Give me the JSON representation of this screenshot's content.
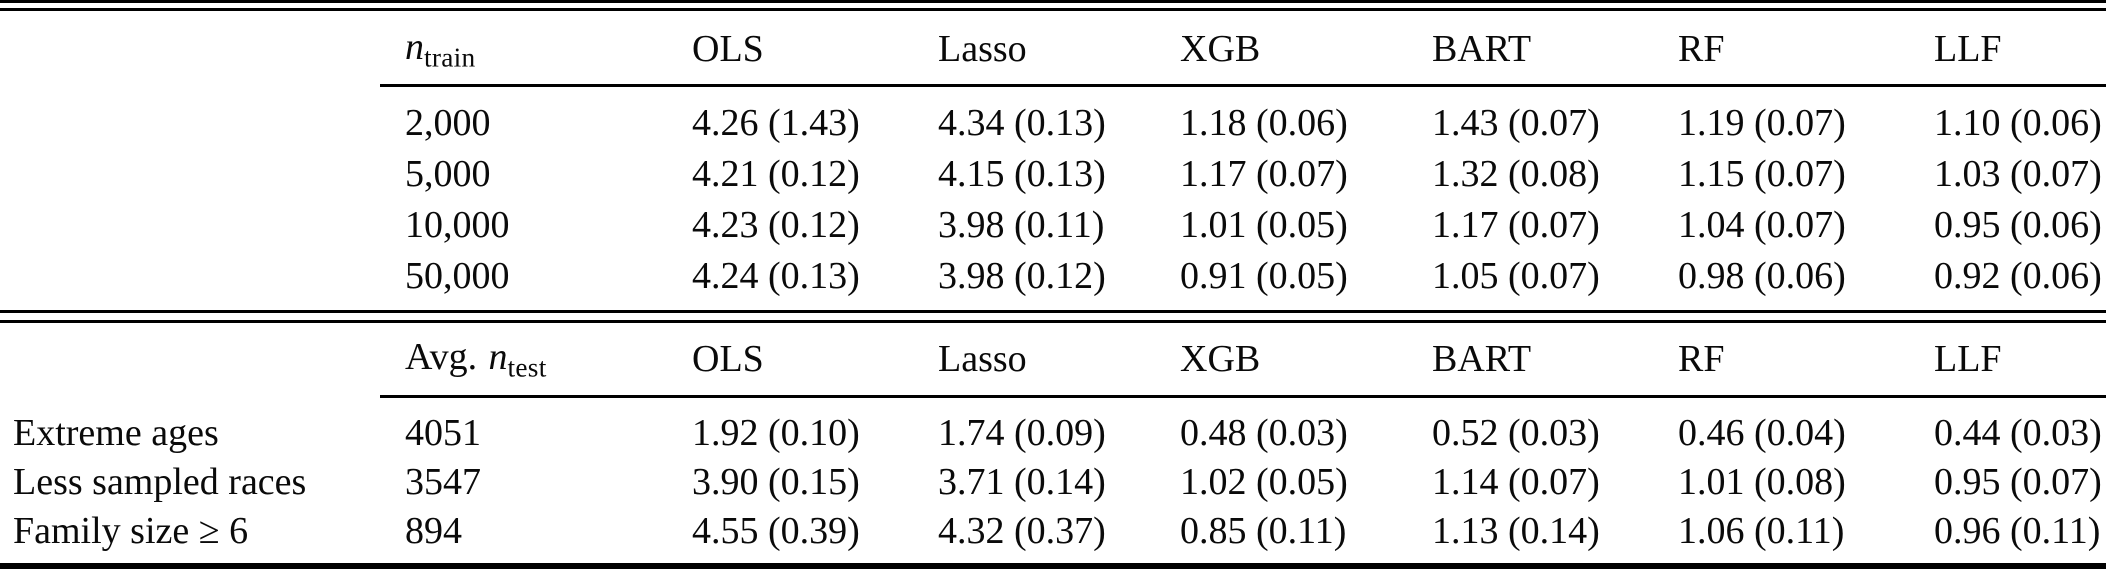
{
  "table": {
    "colors": {
      "background": "#ffffff",
      "text": "#0a0a0a",
      "rule": "#000000"
    },
    "methods": [
      "OLS",
      "Lasso",
      "XGB",
      "BART",
      "RF",
      "LLF"
    ],
    "section_train": {
      "col1_header": {
        "main": "n",
        "sub": "train"
      },
      "rows": [
        {
          "n": "2,000",
          "values": [
            "4.26 (1.43)",
            "4.34 (0.13)",
            "1.18 (0.06)",
            "1.43 (0.07)",
            "1.19 (0.07)",
            "1.10 (0.06)"
          ]
        },
        {
          "n": "5,000",
          "values": [
            "4.21 (0.12)",
            "4.15 (0.13)",
            "1.17 (0.07)",
            "1.32 (0.08)",
            "1.15 (0.07)",
            "1.03 (0.07)"
          ]
        },
        {
          "n": "10,000",
          "values": [
            "4.23 (0.12)",
            "3.98 (0.11)",
            "1.01 (0.05)",
            "1.17 (0.07)",
            "1.04 (0.07)",
            "0.95 (0.06)"
          ]
        },
        {
          "n": "50,000",
          "values": [
            "4.24 (0.13)",
            "3.98 (0.12)",
            "0.91 (0.05)",
            "1.05 (0.07)",
            "0.98 (0.06)",
            "0.92 (0.06)"
          ]
        }
      ]
    },
    "section_test": {
      "col1_header": {
        "prefix": "Avg.",
        "main": "n",
        "sub": "test"
      },
      "rows": [
        {
          "label": "Extreme ages",
          "n": "4051",
          "values": [
            "1.92 (0.10)",
            "1.74 (0.09)",
            "0.48 (0.03)",
            "0.52 (0.03)",
            "0.46 (0.04)",
            "0.44 (0.03)"
          ]
        },
        {
          "label": "Less sampled races",
          "n": "3547",
          "values": [
            "3.90 (0.15)",
            "3.71 (0.14)",
            "1.02 (0.05)",
            "1.14 (0.07)",
            "1.01 (0.08)",
            "0.95 (0.07)"
          ]
        },
        {
          "label": "Family size ≥ 6",
          "n": "894",
          "values": [
            "4.55 (0.39)",
            "4.32 (0.37)",
            "0.85 (0.11)",
            "1.13 (0.14)",
            "1.06 (0.11)",
            "0.96 (0.11)"
          ]
        }
      ]
    }
  }
}
